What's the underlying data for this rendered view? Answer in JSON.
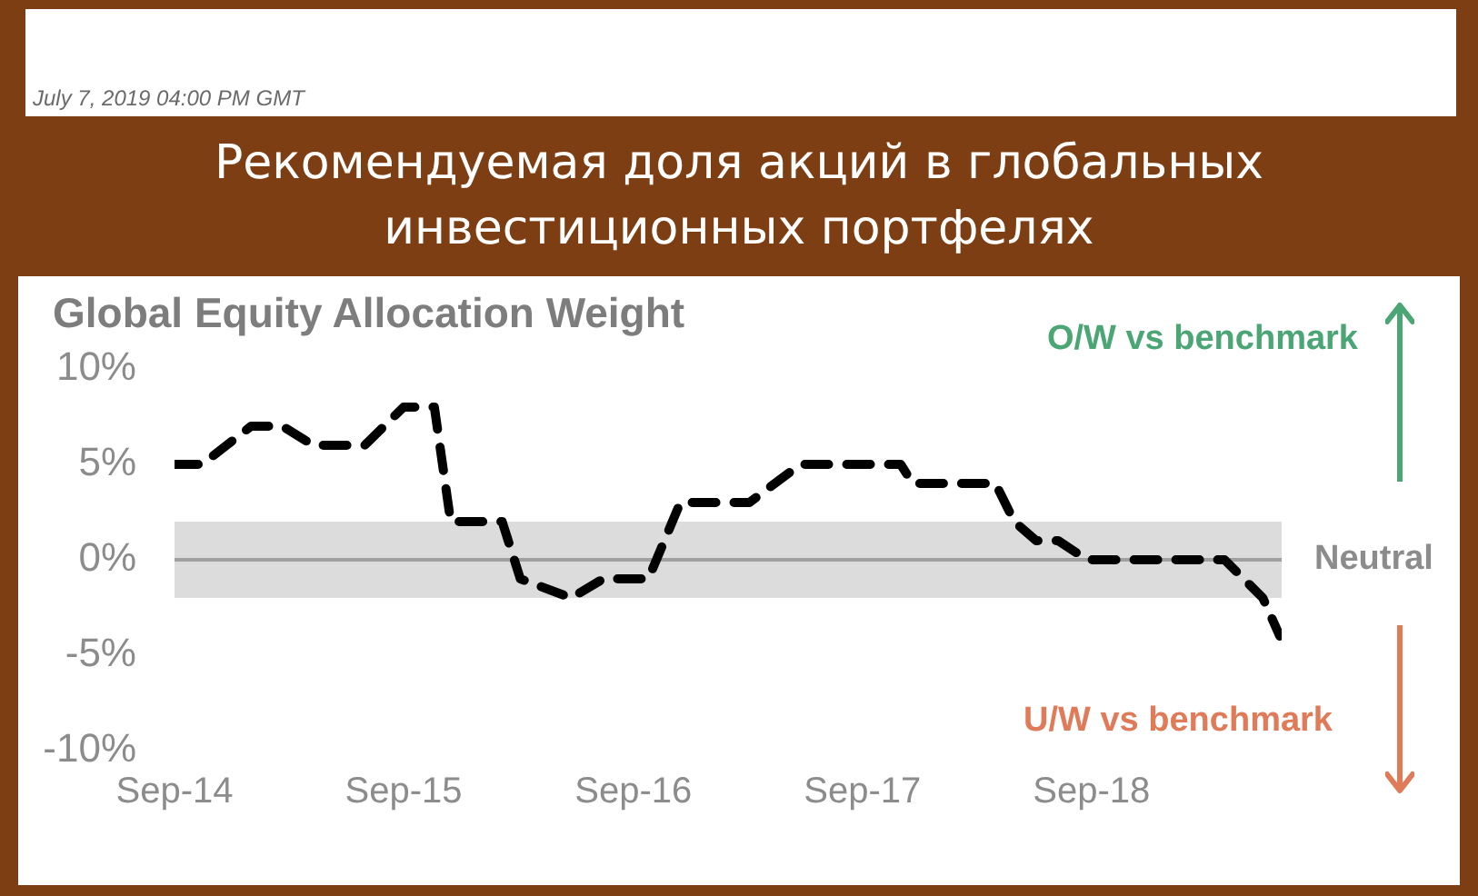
{
  "chart_data": {
    "type": "line",
    "title": "Рекомендуемая доля акций в глобальных инвестиционных портфелях",
    "subtitle": "Global Equity Allocation Weight",
    "annotations": [
      "July 7, 2019 04:00 PM GMT",
      "O/W vs benchmark",
      "U/W vs benchmark"
    ],
    "x": [
      "2014-09-01",
      "2014-10-15",
      "2015-01-01",
      "2015-02-20",
      "2015-04-10",
      "2015-07-01",
      "2015-09-01",
      "2015-10-20",
      "2015-11-15",
      "2016-02-05",
      "2016-03-05",
      "2016-05-25",
      "2016-07-15",
      "2016-09-25",
      "2016-11-15",
      "2017-03-05",
      "2017-05-25",
      "2017-11-01",
      "2017-11-20",
      "2018-04-01",
      "2018-05-01",
      "2018-06-05",
      "2018-07-10",
      "2018-08-25",
      "2019-04-01",
      "2019-06-01",
      "2019-06-28"
    ],
    "series": [
      {
        "color": "#000000",
        "values": [
          5,
          5,
          7,
          7,
          6,
          6,
          8,
          8,
          2,
          2,
          -1,
          -2,
          -1,
          -1,
          3,
          3,
          5,
          5,
          4,
          4,
          2,
          1,
          1,
          0,
          0,
          -2,
          -4
        ]
      }
    ],
    "xlim": [
      "2014-09-01",
      "2019-07-01"
    ],
    "xticks": [
      {
        "value": "2014-09-01",
        "label": "Sep-14"
      },
      {
        "value": "2015-09-01",
        "label": "Sep-15"
      },
      {
        "value": "2016-09-01",
        "label": "Sep-16"
      },
      {
        "value": "2017-09-01",
        "label": "Sep-17"
      },
      {
        "value": "2018-09-01",
        "label": "Sep-18"
      }
    ],
    "ylim": [
      -10,
      10
    ],
    "yticks": [
      {
        "value": -10,
        "label": "-10%"
      },
      {
        "value": -5,
        "label": "-5%"
      },
      {
        "value": 0,
        "label": "0%"
      },
      {
        "value": 5,
        "label": "5%"
      },
      {
        "value": 10,
        "label": "10%"
      }
    ],
    "bands": [
      {
        "axis": "y",
        "from": -2,
        "to": 2,
        "label": "Neutral",
        "color": "#dcdcdc"
      }
    ],
    "ref_lines": [
      {
        "axis": "y",
        "value": 0,
        "color": "#a0a0a0"
      }
    ],
    "line_style": "dashed",
    "marker": "none",
    "grid": false,
    "legend": false
  }
}
